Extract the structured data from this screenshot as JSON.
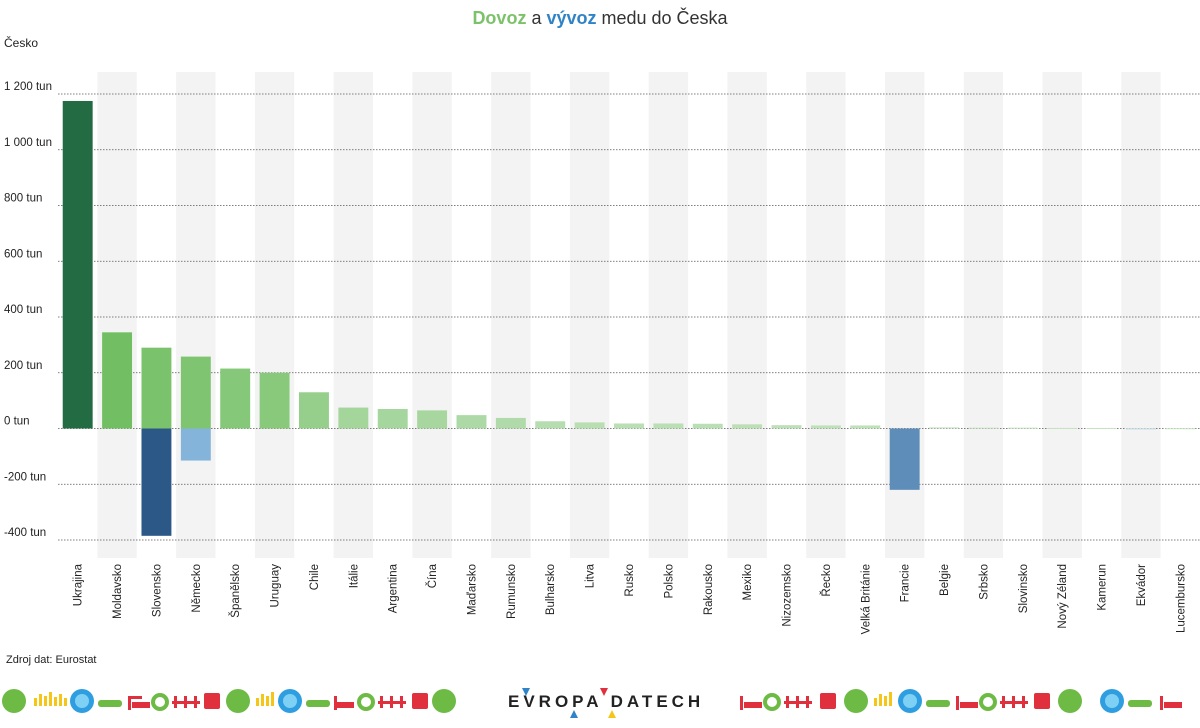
{
  "title": {
    "part1": "Dovoz",
    "part2": " a ",
    "part3": "vývoz",
    "part4": " medu do Česka"
  },
  "country_label": "Česko",
  "source": "Zdroj dat: Eurostat",
  "brand": {
    "text_left": "EVROPA",
    "text_right": "DATECH"
  },
  "colors": {
    "import_accent": "#7cc26a",
    "export_accent": "#2f83c6",
    "import_top": "#236b43",
    "export_top": "#2c5888"
  },
  "chart_data": {
    "type": "bar",
    "title": "Dovoz a vývoz medu do Česka",
    "ylabel": "",
    "xlabel": "",
    "ylim": [
      -420,
      1260
    ],
    "y_ticks": [
      {
        "value": 1200,
        "label": "1 200 tun"
      },
      {
        "value": 1000,
        "label": "1 000 tun"
      },
      {
        "value": 800,
        "label": "800 tun"
      },
      {
        "value": 600,
        "label": "600 tun"
      },
      {
        "value": 400,
        "label": "400 tun"
      },
      {
        "value": 200,
        "label": "200 tun"
      },
      {
        "value": 0,
        "label": "0 tun"
      },
      {
        "value": -200,
        "label": "-200 tun"
      },
      {
        "value": -400,
        "label": "-400 tun"
      }
    ],
    "categories": [
      "Ukrajina",
      "Moldavsko",
      "Slovensko",
      "Německo",
      "Španělsko",
      "Uruguay",
      "Chile",
      "Itálie",
      "Argentina",
      "Čína",
      "Maďarsko",
      "Rumunsko",
      "Bulharsko",
      "Litva",
      "Rusko",
      "Polsko",
      "Rakousko",
      "Mexiko",
      "Nizozemsko",
      "Řecko",
      "Velká Británie",
      "Francie",
      "Belgie",
      "Srbsko",
      "Slovinsko",
      "Nový Zéland",
      "Kamerun",
      "Ekvádor",
      "Lucembursko"
    ],
    "series": [
      {
        "values": [
          1175,
          345,
          290,
          258,
          215,
          200,
          130,
          75,
          70,
          65,
          48,
          38,
          26,
          22,
          18,
          18,
          17,
          15,
          12,
          11,
          11,
          0,
          4,
          3,
          3,
          2,
          2,
          1,
          1
        ]
      },
      {
        "values": [
          0,
          0,
          -385,
          -115,
          0,
          0,
          0,
          0,
          0,
          0,
          0,
          0,
          0,
          0,
          0,
          0,
          0,
          0,
          0,
          0,
          0,
          -220,
          0,
          0,
          0,
          0,
          0,
          -2,
          0
        ]
      }
    ],
    "grid": true,
    "legend": "none"
  }
}
